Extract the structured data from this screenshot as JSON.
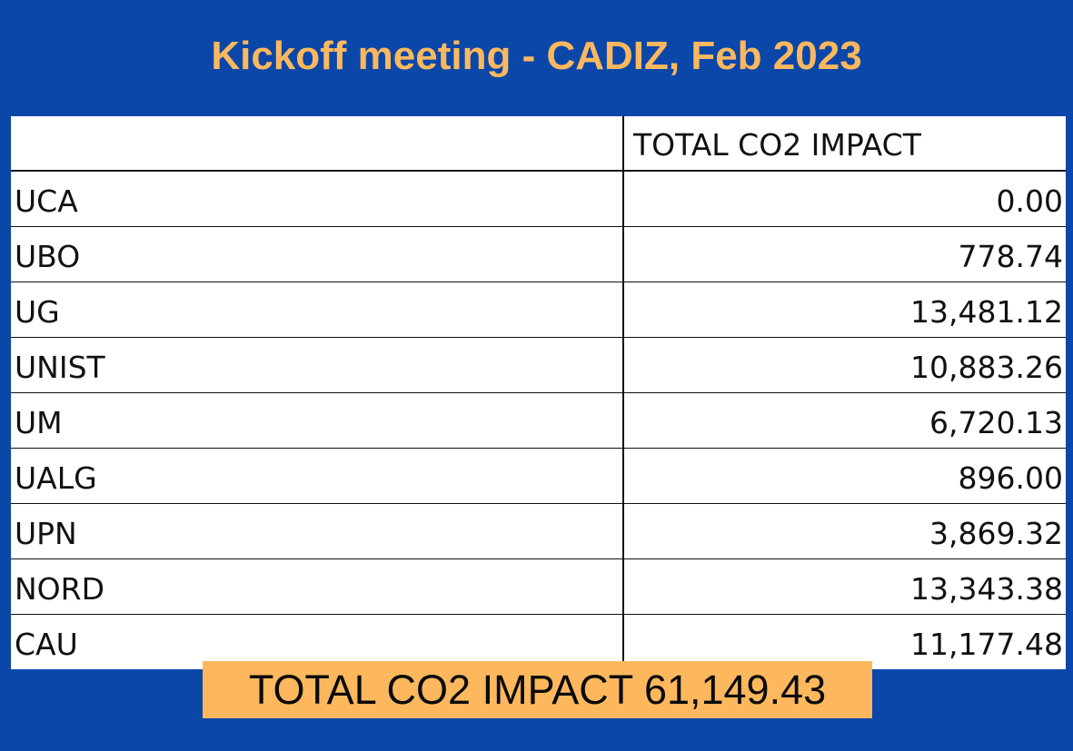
{
  "title": "Kickoff meeting - CADIZ, Feb 2023",
  "table": {
    "header": "TOTAL CO2 IMPACT",
    "rows": [
      {
        "name": "UCA",
        "value": "0.00"
      },
      {
        "name": "UBO",
        "value": "778.74"
      },
      {
        "name": "UG",
        "value": "13,481.12"
      },
      {
        "name": "UNIST",
        "value": "10,883.26"
      },
      {
        "name": "UM",
        "value": "6,720.13"
      },
      {
        "name": "UALG",
        "value": "896.00"
      },
      {
        "name": "UPN",
        "value": "3,869.32"
      },
      {
        "name": "NORD",
        "value": "13,343.38"
      },
      {
        "name": "CAU",
        "value": "11,177.48"
      }
    ]
  },
  "total": {
    "text": "TOTAL CO2 IMPACT 61,149.43"
  },
  "colors": {
    "background": "#0a47a9",
    "accent": "#fdb85e"
  }
}
